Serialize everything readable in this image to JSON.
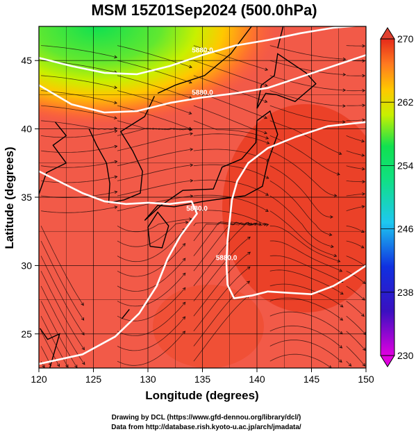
{
  "title": "MSM 15Z01Sep2024 (500.0hPa)",
  "credits": [
    "Drawing by DCL (https://www.gfd-dennou.org/library/dcl/)",
    "Data from http://database.rish.kyoto-u.ac.jp/arch/jmadata/"
  ],
  "axes": {
    "xlabel": "Longitude (degrees)",
    "ylabel": "Latitude  (degrees)",
    "xlim": [
      120,
      150
    ],
    "ylim": [
      22.5,
      47.5
    ],
    "xticks": [
      120,
      125,
      130,
      135,
      140,
      145,
      150
    ],
    "yticks": [
      25,
      30,
      35,
      40,
      45
    ],
    "grid": true
  },
  "colorbar": {
    "range": [
      230,
      270
    ],
    "ticks": [
      270,
      262,
      254,
      246,
      238,
      230
    ],
    "colors": [
      "#e000e0",
      "#2020c8",
      "#1ec8f0",
      "#10e050",
      "#c8f000",
      "#ffc800",
      "#ff5a1e",
      "#e52a1a"
    ]
  },
  "contour_labels": [
    "5880.0",
    "5880.0",
    "5880.0",
    "5880.0",
    "5880.0"
  ],
  "chart_data": {
    "type": "heatmap",
    "field": "temperature (K) at 500.0hPa with streamlines and height contours",
    "color_range": [
      230,
      270
    ],
    "contours": [
      {
        "label": "5880.0",
        "points": [
          [
            120,
            45.2
          ],
          [
            123,
            44.6
          ],
          [
            126,
            44.1
          ],
          [
            129,
            44.0
          ],
          [
            132,
            44.6
          ],
          [
            135,
            45.4
          ],
          [
            138,
            46.1
          ],
          [
            141,
            46.5
          ],
          [
            144,
            47.0
          ],
          [
            147,
            47.4
          ],
          [
            150,
            47.6
          ]
        ]
      },
      {
        "label": "5880.0",
        "points": [
          [
            120,
            43.2
          ],
          [
            123,
            41.8
          ],
          [
            126,
            41.2
          ],
          [
            129,
            41.3
          ],
          [
            132,
            41.9
          ],
          [
            135,
            42.3
          ],
          [
            138,
            42.6
          ],
          [
            141,
            43.0
          ],
          [
            144,
            43.8
          ],
          [
            147,
            44.6
          ],
          [
            150,
            45.4
          ]
        ]
      },
      {
        "label": "5880.0",
        "points": [
          [
            120,
            36.9
          ],
          [
            122,
            36.1
          ],
          [
            124,
            35.3
          ],
          [
            126,
            34.7
          ],
          [
            128,
            34.5
          ],
          [
            130,
            34.6
          ],
          [
            132,
            34.5
          ],
          [
            134,
            34.7
          ],
          [
            134.5,
            33.8
          ],
          [
            133,
            32.2
          ],
          [
            131.8,
            30.5
          ],
          [
            130.8,
            28.5
          ],
          [
            129.2,
            26.5
          ],
          [
            127,
            24.8
          ],
          [
            124,
            23.5
          ],
          [
            120,
            22.8
          ]
        ]
      },
      {
        "label": "5880.0",
        "points": [
          [
            150,
            40.5
          ],
          [
            146.5,
            40.2
          ],
          [
            143.5,
            39.4
          ],
          [
            141,
            38.6
          ],
          [
            139.2,
            37.5
          ],
          [
            138.2,
            36.2
          ],
          [
            137.7,
            34.8
          ],
          [
            137.5,
            33.3
          ],
          [
            137.3,
            31.9
          ],
          [
            137.2,
            30.2
          ],
          [
            137.3,
            28.6
          ],
          [
            137.9,
            27.6
          ],
          [
            139.5,
            27.8
          ],
          [
            141,
            28.1
          ],
          [
            143,
            28.0
          ],
          [
            145,
            27.9
          ],
          [
            147,
            28.5
          ],
          [
            148.5,
            29.2
          ],
          [
            150,
            30.0
          ]
        ]
      }
    ]
  }
}
